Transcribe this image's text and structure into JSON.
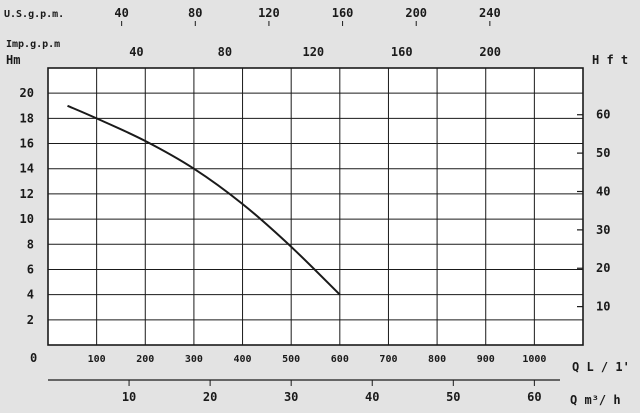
{
  "chart_data": {
    "type": "line",
    "x_axis": {
      "ticks": [
        "100",
        "200",
        "300",
        "400",
        "500",
        "600",
        "700",
        "800",
        "900",
        "1000"
      ],
      "label": "Q L / 1'",
      "zero_label": "0",
      "range": [
        0,
        1100
      ]
    },
    "y_axis_left": {
      "label": "Hm",
      "ticks": [
        "2",
        "4",
        "6",
        "8",
        "10",
        "12",
        "14",
        "16",
        "18",
        "20"
      ],
      "range": [
        0,
        22
      ]
    },
    "y_axis_right": {
      "label": "H f t",
      "ticks": [
        "10",
        "20",
        "30",
        "40",
        "50",
        "60"
      ]
    },
    "top_axes": [
      {
        "label": "U.S.g.p.m.",
        "ticks": [
          "40",
          "80",
          "120",
          "160",
          "200",
          "240"
        ]
      },
      {
        "label": "Imp.g.p.m",
        "ticks": [
          "40",
          "80",
          "120",
          "160",
          "200"
        ]
      }
    ],
    "bottom_axis": {
      "label": "Q m³/ h",
      "ticks": [
        "10",
        "20",
        "30",
        "40",
        "50",
        "60"
      ]
    },
    "series": [
      {
        "x": [
          40,
          100,
          200,
          300,
          400,
          500,
          600
        ],
        "y": [
          19,
          18,
          16.2,
          14,
          11.2,
          7.8,
          4
        ]
      }
    ],
    "grid": true
  }
}
